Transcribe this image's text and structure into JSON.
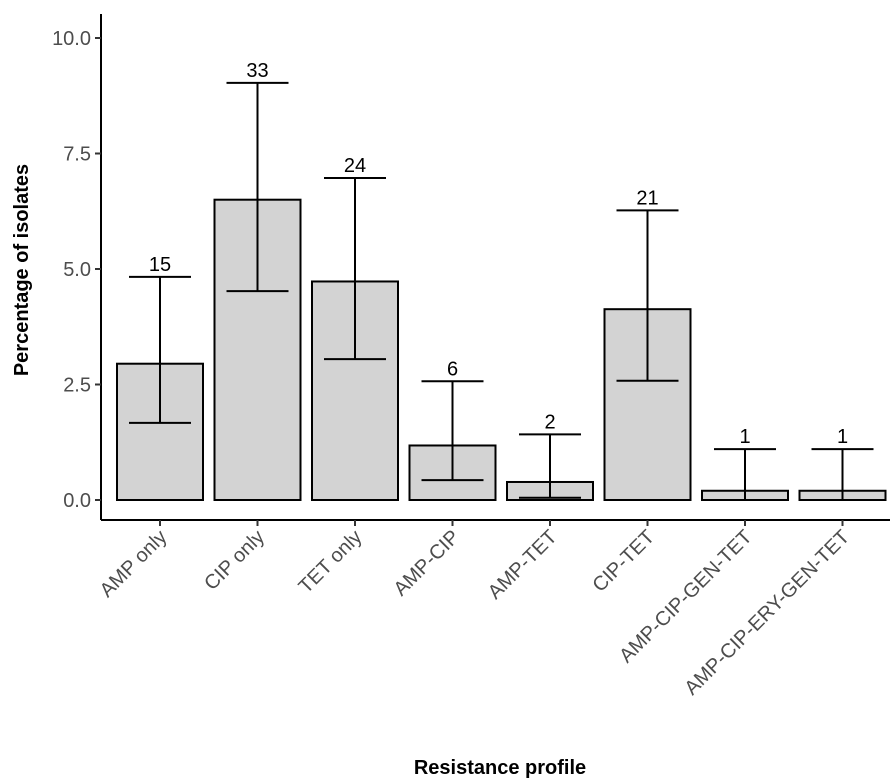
{
  "chart_data": {
    "type": "bar",
    "title": "",
    "xlabel": "Resistance profile",
    "ylabel": "Percentage of isolates",
    "ylim": [
      -0.9,
      10.5
    ],
    "yticks": [
      0.0,
      2.5,
      5.0,
      7.5,
      10.0
    ],
    "ytick_labels": [
      "0.0",
      "2.5",
      "5.0",
      "7.5",
      "10.0"
    ],
    "grid": false,
    "legend": "none",
    "bar_fill": "#d3d3d3",
    "bar_stroke": "#000000",
    "categories": [
      "AMP only",
      "CIP only",
      "TET only",
      "AMP-CIP",
      "AMP-TET",
      "CIP-TET",
      "AMP-CIP-GEN-TET",
      "AMP-CIP-ERY-GEN-TET"
    ],
    "values": [
      2.95,
      6.5,
      4.73,
      1.18,
      0.39,
      4.13,
      0.2,
      0.2
    ],
    "error_low": [
      1.67,
      4.52,
      3.05,
      0.43,
      0.05,
      2.58,
      0.0,
      0.0
    ],
    "error_high": [
      4.83,
      9.03,
      6.97,
      2.57,
      1.42,
      6.27,
      1.1,
      1.1
    ],
    "data_labels": [
      "15",
      "33",
      "24",
      "6",
      "2",
      "21",
      "1",
      "1"
    ]
  }
}
